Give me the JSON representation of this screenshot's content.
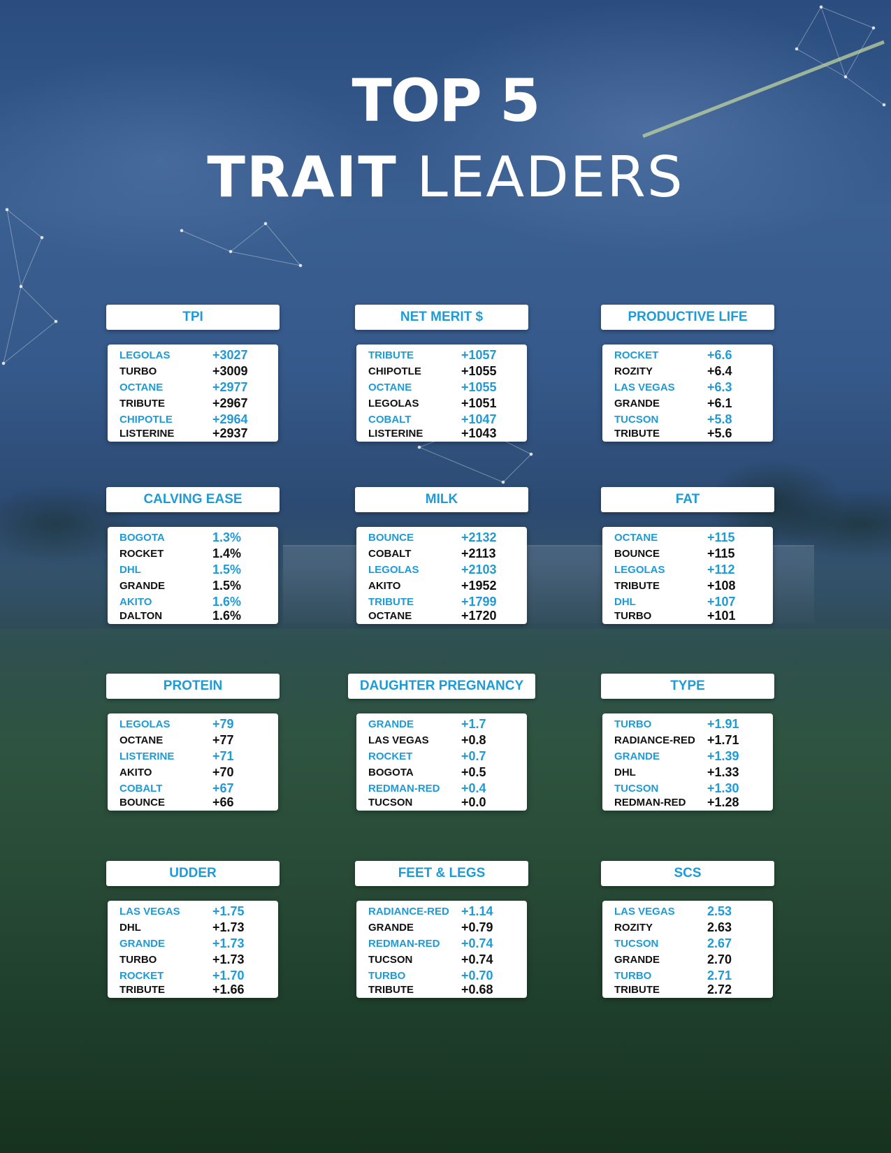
{
  "header": {
    "line1": "TOP 5",
    "line2_bold": "TRAIT",
    "line2_light": "LEADERS"
  },
  "colors": {
    "accent": "#1e9bd7",
    "text_dark": "#111111",
    "card_bg": "#ffffff",
    "title": "#ffffff"
  },
  "cards": [
    {
      "title": "TPI",
      "rows": [
        {
          "name": "LEGOLAS",
          "value": "+3027"
        },
        {
          "name": "TURBO",
          "value": "+3009"
        },
        {
          "name": "OCTANE",
          "value": "+2977"
        },
        {
          "name": "TRIBUTE",
          "value": "+2967"
        },
        {
          "name": "CHIPOTLE",
          "value": "+2964"
        },
        {
          "name": "LISTERINE",
          "value": "+2937"
        }
      ]
    },
    {
      "title": "NET MERIT $",
      "rows": [
        {
          "name": "TRIBUTE",
          "value": "+1057"
        },
        {
          "name": "CHIPOTLE",
          "value": "+1055"
        },
        {
          "name": "OCTANE",
          "value": "+1055"
        },
        {
          "name": "LEGOLAS",
          "value": "+1051"
        },
        {
          "name": "COBALT",
          "value": "+1047"
        },
        {
          "name": "LISTERINE",
          "value": "+1043"
        }
      ]
    },
    {
      "title": "PRODUCTIVE LIFE",
      "rows": [
        {
          "name": "ROCKET",
          "value": "+6.6"
        },
        {
          "name": "ROZITY",
          "value": "+6.4"
        },
        {
          "name": "LAS VEGAS",
          "value": "+6.3"
        },
        {
          "name": "GRANDE",
          "value": "+6.1"
        },
        {
          "name": "TUCSON",
          "value": "+5.8"
        },
        {
          "name": "TRIBUTE",
          "value": "+5.6"
        }
      ]
    },
    {
      "title": "CALVING EASE",
      "rows": [
        {
          "name": "BOGOTA",
          "value": "1.3%"
        },
        {
          "name": "ROCKET",
          "value": "1.4%"
        },
        {
          "name": "DHL",
          "value": "1.5%"
        },
        {
          "name": "GRANDE",
          "value": "1.5%"
        },
        {
          "name": "AKITO",
          "value": "1.6%"
        },
        {
          "name": "DALTON",
          "value": "1.6%"
        }
      ]
    },
    {
      "title": "MILK",
      "rows": [
        {
          "name": "BOUNCE",
          "value": "+2132"
        },
        {
          "name": "COBALT",
          "value": "+2113"
        },
        {
          "name": "LEGOLAS",
          "value": "+2103"
        },
        {
          "name": "AKITO",
          "value": "+1952"
        },
        {
          "name": "TRIBUTE",
          "value": "+1799"
        },
        {
          "name": "OCTANE",
          "value": "+1720"
        }
      ]
    },
    {
      "title": "FAT",
      "rows": [
        {
          "name": "OCTANE",
          "value": "+115"
        },
        {
          "name": "BOUNCE",
          "value": "+115"
        },
        {
          "name": "LEGOLAS",
          "value": "+112"
        },
        {
          "name": "TRIBUTE",
          "value": "+108"
        },
        {
          "name": "DHL",
          "value": "+107"
        },
        {
          "name": "TURBO",
          "value": "+101"
        }
      ]
    },
    {
      "title": "PROTEIN",
      "rows": [
        {
          "name": "LEGOLAS",
          "value": "+79"
        },
        {
          "name": "OCTANE",
          "value": "+77"
        },
        {
          "name": "LISTERINE",
          "value": "+71"
        },
        {
          "name": "AKITO",
          "value": "+70"
        },
        {
          "name": "COBALT",
          "value": "+67"
        },
        {
          "name": "BOUNCE",
          "value": "+66"
        }
      ]
    },
    {
      "title": "DAUGHTER PREGNANCY",
      "rows": [
        {
          "name": "GRANDE",
          "value": "+1.7"
        },
        {
          "name": "LAS VEGAS",
          "value": "+0.8"
        },
        {
          "name": "ROCKET",
          "value": "+0.7"
        },
        {
          "name": "BOGOTA",
          "value": "+0.5"
        },
        {
          "name": "REDMAN-RED",
          "value": "+0.4"
        },
        {
          "name": "TUCSON",
          "value": "+0.0"
        }
      ]
    },
    {
      "title": "TYPE",
      "rows": [
        {
          "name": "TURBO",
          "value": "+1.91"
        },
        {
          "name": "RADIANCE-RED",
          "value": "+1.71"
        },
        {
          "name": "GRANDE",
          "value": "+1.39"
        },
        {
          "name": "DHL",
          "value": "+1.33"
        },
        {
          "name": "TUCSON",
          "value": "+1.30"
        },
        {
          "name": "REDMAN-RED",
          "value": "+1.28"
        }
      ]
    },
    {
      "title": "UDDER",
      "rows": [
        {
          "name": "LAS VEGAS",
          "value": "+1.75"
        },
        {
          "name": "DHL",
          "value": "+1.73"
        },
        {
          "name": "GRANDE",
          "value": "+1.73"
        },
        {
          "name": "TURBO",
          "value": "+1.73"
        },
        {
          "name": "ROCKET",
          "value": "+1.70"
        },
        {
          "name": "TRIBUTE",
          "value": "+1.66"
        }
      ]
    },
    {
      "title": "FEET & LEGS",
      "rows": [
        {
          "name": "RADIANCE-RED",
          "value": "+1.14"
        },
        {
          "name": "GRANDE",
          "value": "+0.79"
        },
        {
          "name": "REDMAN-RED",
          "value": "+0.74"
        },
        {
          "name": "TUCSON",
          "value": "+0.74"
        },
        {
          "name": "TURBO",
          "value": "+0.70"
        },
        {
          "name": "TRIBUTE",
          "value": "+0.68"
        }
      ]
    },
    {
      "title": "SCS",
      "rows": [
        {
          "name": "LAS VEGAS",
          "value": "2.53"
        },
        {
          "name": "ROZITY",
          "value": "2.63"
        },
        {
          "name": "TUCSON",
          "value": "2.67"
        },
        {
          "name": "GRANDE",
          "value": "2.70"
        },
        {
          "name": "TURBO",
          "value": "2.71"
        },
        {
          "name": "TRIBUTE",
          "value": "2.72"
        }
      ]
    }
  ]
}
